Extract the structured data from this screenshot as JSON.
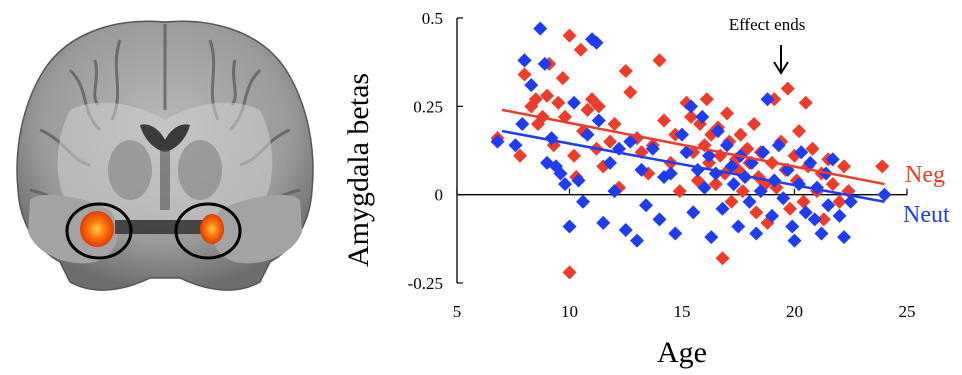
{
  "colors": {
    "neg": "#f03a2a",
    "neut": "#1f3cf2",
    "blob": "#ff6a00",
    "axis": "#000000"
  },
  "chart_data": {
    "type": "scatter",
    "ylabel": "Amygdala betas",
    "xlabel": "Age",
    "xlim": [
      5,
      25
    ],
    "ylim": [
      -0.25,
      0.5
    ],
    "x_ticks": [
      "5",
      "10",
      "15",
      "20",
      "25"
    ],
    "y_ticks": [
      "0.5",
      "0.25",
      "0",
      "-0.25"
    ],
    "x_tick_values": [
      5,
      10,
      15,
      20,
      25
    ],
    "y_tick_values": [
      0.5,
      0.25,
      0,
      -0.25
    ],
    "annotation": {
      "text": "Effect ends",
      "x": 19.4
    },
    "series": [
      {
        "name": "Neg",
        "color": "#f03a2a",
        "trend": {
          "x": [
            7.0,
            24.0
          ],
          "y": [
            0.24,
            0.03
          ]
        },
        "points": [
          [
            6.8,
            0.16
          ],
          [
            7.8,
            0.11
          ],
          [
            8.0,
            0.34
          ],
          [
            8.0,
            0.38
          ],
          [
            8.3,
            0.25
          ],
          [
            8.5,
            0.27
          ],
          [
            8.6,
            0.2
          ],
          [
            8.8,
            0.22
          ],
          [
            9.0,
            0.28
          ],
          [
            9.1,
            0.37
          ],
          [
            9.3,
            0.14
          ],
          [
            9.5,
            0.26
          ],
          [
            9.7,
            0.33
          ],
          [
            9.8,
            0.22
          ],
          [
            10.0,
            0.45
          ],
          [
            10.0,
            -0.22
          ],
          [
            10.2,
            0.11
          ],
          [
            10.3,
            0.05
          ],
          [
            10.5,
            0.41
          ],
          [
            10.6,
            0.18
          ],
          [
            10.8,
            0.24
          ],
          [
            11.0,
            0.27
          ],
          [
            11.2,
            0.13
          ],
          [
            11.3,
            0.25
          ],
          [
            11.5,
            0.08
          ],
          [
            11.8,
            0.15
          ],
          [
            12.0,
            0.2
          ],
          [
            12.2,
            0.02
          ],
          [
            12.5,
            0.35
          ],
          [
            12.7,
            0.29
          ],
          [
            13.0,
            0.16
          ],
          [
            13.2,
            0.12
          ],
          [
            13.5,
            0.06
          ],
          [
            13.7,
            0.14
          ],
          [
            14.0,
            0.38
          ],
          [
            14.2,
            0.21
          ],
          [
            14.5,
            0.09
          ],
          [
            14.7,
            0.17
          ],
          [
            14.9,
            0.01
          ],
          [
            15.2,
            0.26
          ],
          [
            15.4,
            0.22
          ],
          [
            15.5,
            0.12
          ],
          [
            15.7,
            0.04
          ],
          [
            15.8,
            0.2
          ],
          [
            16.0,
            0.14
          ],
          [
            16.1,
            0.27
          ],
          [
            16.2,
            0.09
          ],
          [
            16.3,
            0.17
          ],
          [
            16.5,
            0.03
          ],
          [
            16.6,
            0.19
          ],
          [
            16.7,
            0.11
          ],
          [
            16.8,
            -0.18
          ],
          [
            16.9,
            0.06
          ],
          [
            17.0,
            0.23
          ],
          [
            17.1,
            0.15
          ],
          [
            17.2,
            -0.02
          ],
          [
            17.4,
            0.1
          ],
          [
            17.5,
            0.07
          ],
          [
            17.6,
            0.17
          ],
          [
            17.7,
            0.01
          ],
          [
            17.9,
            0.13
          ],
          [
            18.0,
            0.09
          ],
          [
            18.2,
            0.2
          ],
          [
            18.3,
            -0.05
          ],
          [
            18.4,
            0.05
          ],
          [
            18.5,
            0.12
          ],
          [
            18.7,
            0.03
          ],
          [
            18.8,
            -0.08
          ],
          [
            19.0,
            0.09
          ],
          [
            19.1,
            0.27
          ],
          [
            19.2,
            0.02
          ],
          [
            19.4,
            0.15
          ],
          [
            19.6,
            0.07
          ],
          [
            19.7,
            0.3
          ],
          [
            19.8,
            -0.04
          ],
          [
            20.0,
            0.11
          ],
          [
            20.1,
            0.04
          ],
          [
            20.2,
            0.18
          ],
          [
            20.4,
            -0.02
          ],
          [
            20.5,
            0.26
          ],
          [
            20.6,
            0.08
          ],
          [
            20.8,
            0.13
          ],
          [
            21.0,
            0.01
          ],
          [
            21.2,
            0.06
          ],
          [
            21.3,
            -0.07
          ],
          [
            21.5,
            0.1
          ],
          [
            21.7,
            0.03
          ],
          [
            22.0,
            -0.02
          ],
          [
            22.2,
            0.08
          ],
          [
            22.4,
            0.01
          ],
          [
            23.9,
            0.08
          ]
        ]
      },
      {
        "name": "Neut",
        "color": "#1f3cf2",
        "trend": {
          "x": [
            7.0,
            24.0
          ],
          "y": [
            0.18,
            -0.02
          ]
        },
        "points": [
          [
            6.8,
            0.15
          ],
          [
            7.6,
            0.14
          ],
          [
            7.9,
            0.2
          ],
          [
            8.0,
            0.38
          ],
          [
            8.3,
            0.31
          ],
          [
            8.7,
            0.47
          ],
          [
            8.9,
            0.37
          ],
          [
            9.0,
            0.09
          ],
          [
            9.2,
            0.16
          ],
          [
            9.4,
            0.08
          ],
          [
            9.6,
            0.06
          ],
          [
            9.8,
            0.03
          ],
          [
            10.0,
            -0.09
          ],
          [
            10.2,
            0.26
          ],
          [
            10.4,
            0.04
          ],
          [
            10.6,
            -0.02
          ],
          [
            10.8,
            0.17
          ],
          [
            11.0,
            0.44
          ],
          [
            11.2,
            0.43
          ],
          [
            11.3,
            0.21
          ],
          [
            11.5,
            -0.08
          ],
          [
            11.8,
            0.09
          ],
          [
            12.0,
            0.01
          ],
          [
            12.2,
            0.13
          ],
          [
            12.5,
            -0.1
          ],
          [
            12.7,
            0.15
          ],
          [
            13.0,
            -0.13
          ],
          [
            13.2,
            0.07
          ],
          [
            13.4,
            -0.03
          ],
          [
            13.7,
            0.13
          ],
          [
            14.0,
            -0.07
          ],
          [
            14.2,
            0.05
          ],
          [
            14.5,
            0.06
          ],
          [
            14.7,
            -0.11
          ],
          [
            15.0,
            0.17
          ],
          [
            15.2,
            0.12
          ],
          [
            15.4,
            0.25
          ],
          [
            15.5,
            -0.05
          ],
          [
            15.7,
            0.07
          ],
          [
            15.9,
            0.22
          ],
          [
            16.0,
            0.02
          ],
          [
            16.2,
            0.11
          ],
          [
            16.3,
            -0.12
          ],
          [
            16.5,
            0.06
          ],
          [
            16.6,
            0.18
          ],
          [
            16.8,
            -0.04
          ],
          [
            17.0,
            0.14
          ],
          [
            17.2,
            0.08
          ],
          [
            17.3,
            0.03
          ],
          [
            17.5,
            -0.09
          ],
          [
            17.6,
            0.11
          ],
          [
            17.8,
            0.05
          ],
          [
            18.0,
            -0.02
          ],
          [
            18.1,
            0.09
          ],
          [
            18.3,
            -0.11
          ],
          [
            18.5,
            0.01
          ],
          [
            18.6,
            0.12
          ],
          [
            18.8,
            0.27
          ],
          [
            19.0,
            -0.06
          ],
          [
            19.1,
            0.04
          ],
          [
            19.3,
            0.14
          ],
          [
            19.5,
            -0.01
          ],
          [
            19.7,
            0.07
          ],
          [
            19.9,
            -0.09
          ],
          [
            20.0,
            -0.13
          ],
          [
            20.2,
            0.03
          ],
          [
            20.3,
            0.12
          ],
          [
            20.5,
            -0.05
          ],
          [
            20.7,
            0.09
          ],
          [
            20.9,
            -0.07
          ],
          [
            21.0,
            0.02
          ],
          [
            21.2,
            -0.11
          ],
          [
            21.4,
            0.06
          ],
          [
            21.5,
            -0.03
          ],
          [
            21.7,
            0.1
          ],
          [
            22.0,
            -0.06
          ],
          [
            22.2,
            -0.12
          ],
          [
            22.5,
            -0.02
          ],
          [
            24.0,
            0.0
          ]
        ]
      }
    ]
  }
}
